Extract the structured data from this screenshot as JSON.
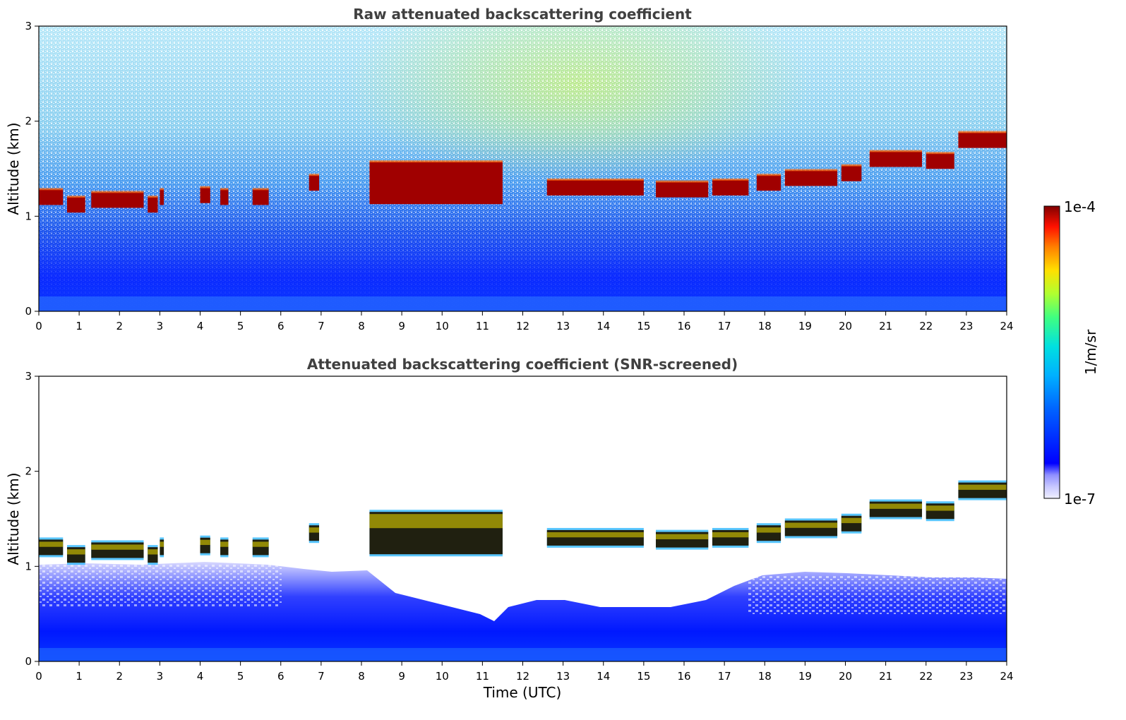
{
  "chart_data": [
    {
      "type": "heatmap",
      "title": "Raw attenuated backscattering coefficient",
      "xlabel": "",
      "ylabel": "Altitude (km)",
      "xlim": [
        0,
        24
      ],
      "ylim": [
        0,
        3
      ],
      "xticks": [
        "0",
        "1",
        "2",
        "3",
        "4",
        "5",
        "6",
        "7",
        "8",
        "9",
        "10",
        "11",
        "12",
        "13",
        "14",
        "15",
        "16",
        "17",
        "18",
        "19",
        "20",
        "21",
        "22",
        "23",
        "24"
      ],
      "yticks": [
        "0",
        "1",
        "2",
        "3"
      ],
      "cloud_layer": {
        "segments": [
          [
            0.0,
            0.6,
            1.2
          ],
          [
            0.7,
            1.15,
            1.12
          ],
          [
            1.3,
            2.6,
            1.17
          ],
          [
            2.7,
            2.95,
            1.12
          ],
          [
            3.0,
            3.1,
            1.2
          ],
          [
            4.0,
            4.25,
            1.22
          ],
          [
            4.5,
            4.7,
            1.2
          ],
          [
            5.3,
            5.7,
            1.2
          ],
          [
            6.7,
            6.95,
            1.35
          ],
          [
            8.2,
            11.5,
            1.35
          ],
          [
            12.6,
            15.0,
            1.3
          ],
          [
            15.3,
            16.6,
            1.28
          ],
          [
            16.7,
            17.6,
            1.3
          ],
          [
            17.8,
            18.4,
            1.35
          ],
          [
            18.5,
            19.8,
            1.4
          ],
          [
            19.9,
            20.4,
            1.45
          ],
          [
            20.6,
            21.9,
            1.6
          ],
          [
            22.0,
            22.7,
            1.58
          ],
          [
            22.8,
            24.0,
            1.8
          ]
        ]
      }
    },
    {
      "type": "heatmap",
      "title": "Attenuated backscattering coefficient (SNR-screened)",
      "xlabel": "Time (UTC)",
      "ylabel": "Altitude (km)",
      "xlim": [
        0,
        24
      ],
      "ylim": [
        0,
        3
      ],
      "xticks": [
        "0",
        "1",
        "2",
        "3",
        "4",
        "5",
        "6",
        "7",
        "8",
        "9",
        "10",
        "11",
        "12",
        "13",
        "14",
        "15",
        "16",
        "17",
        "18",
        "19",
        "20",
        "21",
        "22",
        "23",
        "24"
      ],
      "yticks": [
        "0",
        "1",
        "2",
        "3"
      ]
    }
  ],
  "colorbar": {
    "label": "1/m/sr",
    "max_label": "1e-4",
    "min_label": "1e-7",
    "colors": [
      "#f0f0ff",
      "#c8c8ff",
      "#9090ff",
      "#0000ff",
      "#0060ff",
      "#00b0ff",
      "#00e0e0",
      "#40ff80",
      "#b0ff30",
      "#ffe000",
      "#ff8000",
      "#ff1000",
      "#800000"
    ]
  }
}
